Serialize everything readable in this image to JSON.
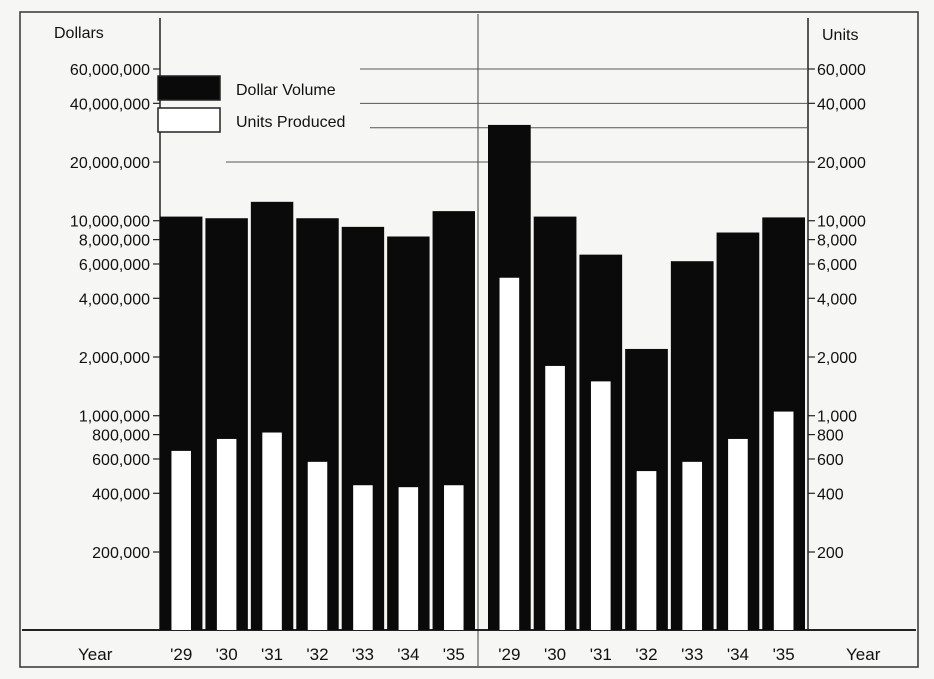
{
  "chart_data": {
    "type": "bar",
    "scale": "log",
    "grid": false,
    "legend_placement": "top-left",
    "left_axis": {
      "title": "Dollars",
      "ticks": [
        200000,
        400000,
        600000,
        800000,
        1000000,
        2000000,
        4000000,
        6000000,
        8000000,
        10000000,
        20000000,
        40000000,
        60000000
      ],
      "tick_labels": [
        "200,000",
        "400,000",
        "600,000",
        "800,000",
        "1,000,000",
        "2,000,000",
        "4,000,000",
        "6,000,000",
        "8,000,000",
        "10,000,000",
        "20,000,000",
        "40,000,000",
        "60,000,000"
      ],
      "ylim": [
        100000,
        60000000
      ]
    },
    "right_axis": {
      "title": "Units",
      "ticks": [
        200,
        400,
        600,
        800,
        1000,
        2000,
        4000,
        6000,
        8000,
        10000,
        20000,
        40000,
        60000
      ],
      "tick_labels": [
        "200",
        "400",
        "600",
        "800",
        "1,000",
        "2,000",
        "4,000",
        "6,000",
        "8,000",
        "10,000",
        "20,000",
        "40,000",
        "60,000"
      ],
      "ylim": [
        100,
        60000
      ]
    },
    "x_axis_label": "Year",
    "legend": [
      {
        "name": "Dollar Volume",
        "color": "#0a0a0a"
      },
      {
        "name": "Units Produced",
        "color": "#ffffff"
      }
    ],
    "panels": [
      {
        "categories": [
          "'29",
          "'30",
          "'31",
          "'32",
          "'33",
          "'34",
          "'35"
        ],
        "series": [
          {
            "name": "Dollar Volume",
            "axis": "left",
            "values": [
              10500000,
              10300000,
              12500000,
              10300000,
              9300000,
              8300000,
              11200000
            ]
          },
          {
            "name": "Units Produced",
            "axis": "right",
            "values": [
              660,
              760,
              820,
              580,
              440,
              430,
              440
            ]
          }
        ]
      },
      {
        "categories": [
          "'29",
          "'30",
          "'31",
          "'32",
          "'33",
          "'34",
          "'35"
        ],
        "series": [
          {
            "name": "Dollar Volume",
            "axis": "right",
            "values": [
              31000,
              10500,
              6700,
              2200,
              6200,
              8700,
              10400
            ]
          },
          {
            "name": "Units Produced",
            "axis": "right",
            "values": [
              5100,
              1800,
              1500,
              520,
              580,
              760,
              1050
            ]
          }
        ]
      }
    ]
  }
}
